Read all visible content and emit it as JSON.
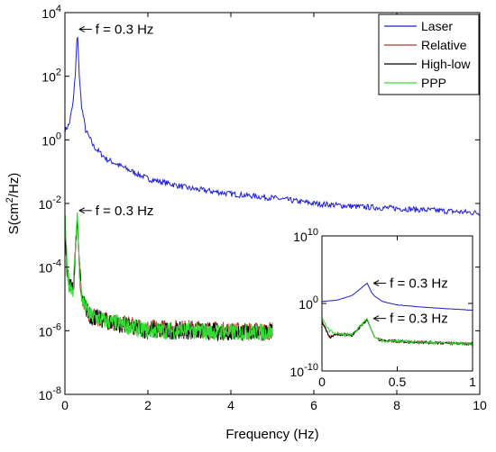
{
  "chart_data": [
    {
      "type": "line",
      "role": "main",
      "xlabel": "Frequency (Hz)",
      "ylabel": "S(cm²/Hz)",
      "ylabel_base": "S(cm",
      "ylabel_sup": "2",
      "ylabel_tail": "/Hz)",
      "xlim": [
        0,
        10
      ],
      "ylim": [
        1e-08,
        10000
      ],
      "yscale": "log",
      "grid": false,
      "x_ticks": [
        "0",
        "2",
        "4",
        "6",
        "8",
        "10"
      ],
      "y_ticks": [
        {
          "base": "10",
          "exp": "4"
        },
        {
          "base": "10",
          "exp": "2"
        },
        {
          "base": "10",
          "exp": "0"
        },
        {
          "base": "10",
          "exp": "-2"
        },
        {
          "base": "10",
          "exp": "-4"
        },
        {
          "base": "10",
          "exp": "-6"
        },
        {
          "base": "10",
          "exp": "-8"
        }
      ],
      "legend": {
        "position": "top-right",
        "entries": [
          {
            "name": "Laser",
            "color": "#1f1fd0"
          },
          {
            "name": "Relative",
            "color": "#b23a2a"
          },
          {
            "name": "High-low",
            "color": "#000000"
          },
          {
            "name": "PPP",
            "color": "#33dd33"
          }
        ]
      },
      "series": [
        {
          "name": "Laser",
          "color": "#1f1fd0",
          "x": [
            0.0,
            0.1,
            0.2,
            0.25,
            0.3,
            0.35,
            0.4,
            0.5,
            0.7,
            1.0,
            1.5,
            2.0,
            3.0,
            4.0,
            5.0,
            6.0,
            7.0,
            8.0,
            9.0,
            10.0
          ],
          "y": [
            2,
            3,
            15,
            120,
            3000,
            80,
            12,
            2,
            0.6,
            0.25,
            0.12,
            0.06,
            0.03,
            0.02,
            0.015,
            0.01,
            0.008,
            0.007,
            0.006,
            0.005
          ]
        },
        {
          "name": "Relative",
          "color": "#b23a2a",
          "x": [
            0.0,
            0.05,
            0.1,
            0.2,
            0.3,
            0.35,
            0.4,
            0.6,
            1.0,
            2.0,
            3.0,
            4.0,
            5.0
          ],
          "y": [
            0.003,
            0.0001,
            3e-05,
            2e-05,
            0.004,
            0.0001,
            1e-05,
            3e-06,
            2e-06,
            1.2e-06,
            1.2e-06,
            1e-06,
            1e-06
          ]
        },
        {
          "name": "High-low",
          "color": "#000000",
          "x": [
            0.0,
            0.05,
            0.1,
            0.2,
            0.3,
            0.35,
            0.4,
            0.6,
            1.0,
            2.0,
            3.0,
            4.0,
            5.0
          ],
          "y": [
            0.002,
            8e-05,
            3e-05,
            2e-05,
            0.004,
            0.0001,
            1e-05,
            3e-06,
            2e-06,
            1e-06,
            1e-06,
            9e-07,
            9e-07
          ]
        },
        {
          "name": "PPP",
          "color": "#33dd33",
          "x": [
            0.0,
            0.05,
            0.1,
            0.2,
            0.3,
            0.35,
            0.4,
            0.6,
            1.0,
            2.0,
            3.0,
            4.0,
            5.0
          ],
          "y": [
            0.005,
            0.0001,
            3e-05,
            2e-05,
            0.006,
            0.0001,
            1e-05,
            3e-06,
            2e-06,
            1e-06,
            1e-06,
            9e-07,
            9e-07
          ]
        }
      ],
      "annotations": [
        {
          "text": "f = 0.3 Hz",
          "x": 0.3,
          "y": 3000
        },
        {
          "text": "f = 0.3 Hz",
          "x": 0.3,
          "y": 0.006
        }
      ]
    },
    {
      "type": "line",
      "role": "inset",
      "xlim": [
        0,
        1
      ],
      "ylim": [
        1e-10,
        10000000000.0
      ],
      "yscale": "log",
      "x_ticks": [
        "0",
        "0.5",
        "1"
      ],
      "y_ticks": [
        {
          "base": "10",
          "exp": "10"
        },
        {
          "base": "10",
          "exp": "0"
        },
        {
          "base": "10",
          "exp": "-10"
        }
      ],
      "series": [
        {
          "name": "Laser",
          "color": "#1f1fd0",
          "x": [
            0.0,
            0.1,
            0.2,
            0.25,
            0.3,
            0.33,
            0.35,
            0.4,
            0.5,
            0.7,
            1.0
          ],
          "y": [
            2,
            3,
            15,
            120,
            1000,
            40,
            12,
            2,
            0.6,
            0.25,
            0.1
          ]
        },
        {
          "name": "Relative",
          "color": "#b23a2a",
          "x": [
            0.0,
            0.05,
            0.1,
            0.2,
            0.3,
            0.33,
            0.35,
            0.4,
            0.6,
            1.0
          ],
          "y": [
            0.003,
            1e-05,
            3e-05,
            2e-05,
            0.004,
            0.0001,
            1e-05,
            3e-06,
            2e-06,
            1e-06
          ]
        },
        {
          "name": "High-low",
          "color": "#000000",
          "x": [
            0.0,
            0.05,
            0.1,
            0.2,
            0.3,
            0.33,
            0.35,
            0.4,
            0.6,
            1.0
          ],
          "y": [
            0.002,
            1e-05,
            3e-05,
            2e-05,
            0.004,
            0.0001,
            1e-05,
            3e-06,
            2e-06,
            1e-06
          ]
        },
        {
          "name": "PPP",
          "color": "#33dd33",
          "x": [
            0.0,
            0.05,
            0.1,
            0.2,
            0.3,
            0.33,
            0.35,
            0.4,
            0.6,
            1.0
          ],
          "y": [
            0.005,
            0.0001,
            3e-05,
            2e-05,
            0.006,
            0.0001,
            1e-05,
            3e-06,
            2e-06,
            1e-06
          ]
        }
      ],
      "annotations": [
        {
          "text": "f = 0.3 Hz",
          "x": 0.33,
          "y": 1000
        },
        {
          "text": "f = 0.3 Hz",
          "x": 0.33,
          "y": 0.006
        }
      ]
    }
  ]
}
